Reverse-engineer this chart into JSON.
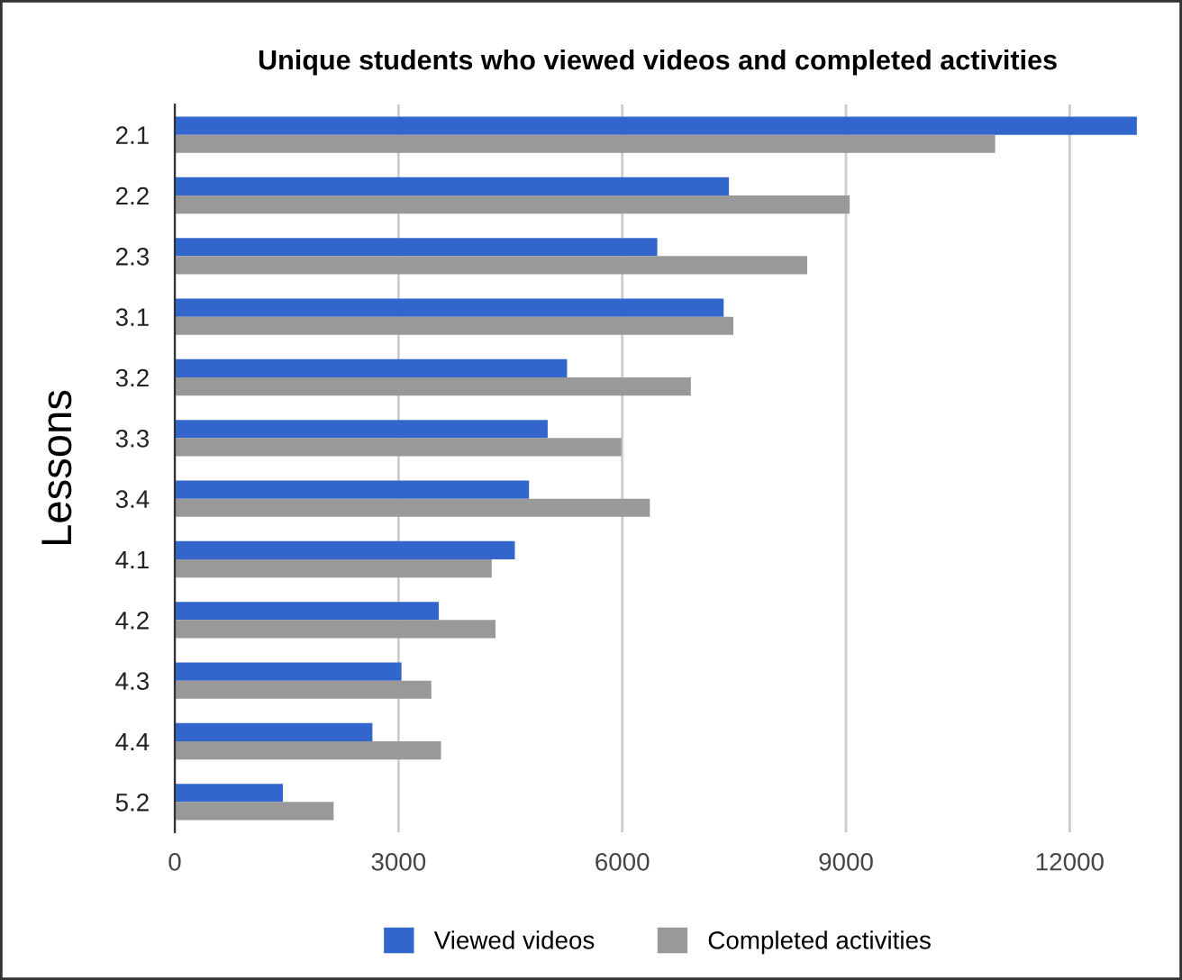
{
  "chart_data": {
    "type": "bar",
    "orientation": "horizontal",
    "title": "Unique students who viewed videos and completed activities",
    "ylabel": "Lessons",
    "categories": [
      "2.1",
      "2.2",
      "2.3",
      "3.1",
      "3.2",
      "3.3",
      "3.4",
      "4.1",
      "4.2",
      "4.3",
      "4.4",
      "5.2"
    ],
    "series": [
      {
        "name": "Viewed videos",
        "color": "#3366cc",
        "values": [
          12900,
          7430,
          6470,
          7360,
          5260,
          5000,
          4750,
          4560,
          3540,
          3040,
          2650,
          1450
        ]
      },
      {
        "name": "Completed activities",
        "color": "#999999",
        "values": [
          11000,
          9050,
          8480,
          7490,
          6920,
          5990,
          6370,
          4250,
          4300,
          3440,
          3570,
          2130
        ]
      }
    ],
    "xlim": [
      0,
      12950
    ],
    "xticks": [
      0,
      3000,
      6000,
      9000,
      12000
    ],
    "grid": "x",
    "legend": "bottom"
  }
}
